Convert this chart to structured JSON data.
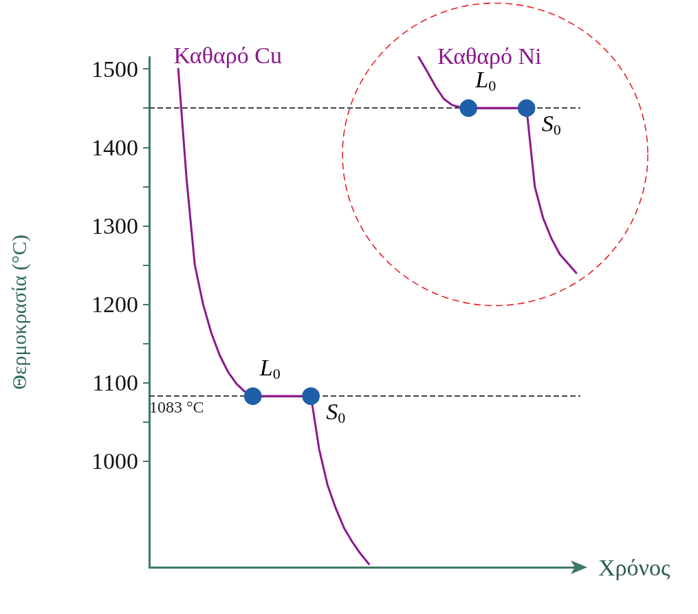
{
  "chart_data": {
    "type": "line",
    "xlabel": "Χρόνος",
    "ylabel": "Θερμοκρασία (°C)",
    "categories": [
      null,
      null,
      null,
      null,
      null,
      null,
      null,
      null,
      null,
      null,
      null,
      null,
      null,
      null,
      null,
      null,
      null,
      null,
      null,
      null,
      null,
      null,
      null,
      null,
      null,
      null,
      null,
      null,
      null,
      null,
      null,
      null,
      null,
      null,
      null,
      null,
      null,
      null,
      null,
      null,
      null,
      null,
      null,
      null,
      null,
      null,
      null,
      null,
      null,
      null,
      null,
      null
    ],
    "ylim": [
      865,
      1515
    ],
    "tick_labels": "y",
    "legend": false,
    "grid": false,
    "yticks": [
      1000,
      {
        "value": 1050,
        "label": null
      },
      1100,
      {
        "value": 1150,
        "label": null
      },
      1200,
      {
        "value": 1250,
        "label": null
      },
      1300,
      {
        "value": 1350,
        "label": null
      },
      1400,
      {
        "value": 1450,
        "label": null
      },
      1500
    ],
    "series": [
      {
        "name": "Καθαρό Cu",
        "color": "#8b1a8b",
        "values": [
          null,
          null,
          null,
          1500,
          1360,
          1250,
          1200,
          1163,
          1135,
          1114,
          1099,
          1089,
          1083,
          1083,
          1083,
          1083,
          1083,
          1083,
          1083,
          1083,
          1015,
          970,
          940,
          915,
          897,
          882,
          869,
          null,
          null,
          null,
          null,
          null,
          null,
          null,
          null,
          null,
          null,
          null,
          null,
          null,
          null,
          null,
          null,
          null,
          null,
          null,
          null,
          null,
          null,
          null,
          null,
          null
        ]
      },
      {
        "color": "#8b1a8b",
        "colors": [
          null,
          null,
          null,
          null,
          null,
          null,
          null,
          null,
          null,
          null,
          null,
          null,
          "#1f5fa8",
          null,
          null,
          null,
          null,
          null,
          null,
          "#1f5fa8",
          null,
          null,
          null,
          null,
          null,
          null,
          null,
          null,
          null,
          null,
          null,
          null,
          null,
          null,
          null,
          null,
          null,
          null,
          null,
          null,
          null,
          null,
          null,
          null,
          null,
          null,
          null,
          null,
          null,
          null,
          null,
          null
        ],
        "marker": "circle",
        "values": [
          null,
          null,
          null,
          null,
          null,
          null,
          null,
          null,
          null,
          null,
          null,
          null,
          1083,
          null,
          null,
          null,
          null,
          null,
          null,
          1083,
          null,
          null,
          null,
          null,
          null,
          null,
          null,
          null,
          null,
          null,
          null,
          null,
          null,
          null,
          null,
          null,
          null,
          null,
          null,
          null,
          null,
          null,
          null,
          null,
          null,
          null,
          null,
          null,
          null,
          null,
          null,
          null
        ]
      },
      {
        "name": "Καθαρό Ni",
        "color": "#8b1a8b",
        "values": [
          null,
          null,
          null,
          null,
          null,
          null,
          null,
          null,
          null,
          null,
          null,
          null,
          null,
          null,
          null,
          null,
          null,
          null,
          null,
          null,
          null,
          null,
          null,
          null,
          null,
          null,
          null,
          null,
          null,
          null,
          null,
          null,
          1515,
          1497,
          1478,
          1462,
          1454,
          1451,
          1450,
          1450,
          1450,
          1450,
          1450,
          1450,
          1450,
          1450,
          1350,
          1310,
          1284,
          1264,
          1252,
          1240
        ]
      },
      {
        "color": "#8b1a8b",
        "colors": [
          null,
          null,
          null,
          null,
          null,
          null,
          null,
          null,
          null,
          null,
          null,
          null,
          null,
          null,
          null,
          null,
          null,
          null,
          null,
          null,
          null,
          null,
          null,
          null,
          null,
          null,
          null,
          null,
          null,
          null,
          null,
          null,
          null,
          null,
          null,
          null,
          null,
          null,
          "#1f5fa8",
          null,
          null,
          null,
          null,
          null,
          null,
          "#1f5fa8",
          null,
          null,
          null,
          null,
          null,
          null
        ],
        "marker": "circle",
        "values": [
          null,
          null,
          null,
          null,
          null,
          null,
          null,
          null,
          null,
          null,
          null,
          null,
          null,
          null,
          null,
          null,
          null,
          null,
          null,
          null,
          null,
          null,
          null,
          null,
          null,
          null,
          null,
          null,
          null,
          null,
          null,
          null,
          null,
          null,
          null,
          null,
          null,
          null,
          1450,
          null,
          null,
          null,
          null,
          null,
          null,
          1450,
          null,
          null,
          null,
          null,
          null,
          null
        ]
      }
    ],
    "ref_lines": [
      {
        "axis": "y",
        "value": 1450,
        "line_style": "dashed",
        "color": "#444444"
      },
      {
        "axis": "y",
        "value": 1083,
        "label": "1083 °C",
        "line_style": "dashed",
        "color": "#444444"
      }
    ],
    "annotations": [
      "L$_{0}$",
      "S$_{0}$",
      "L$_{0}$",
      "S$_{0}$"
    ]
  }
}
